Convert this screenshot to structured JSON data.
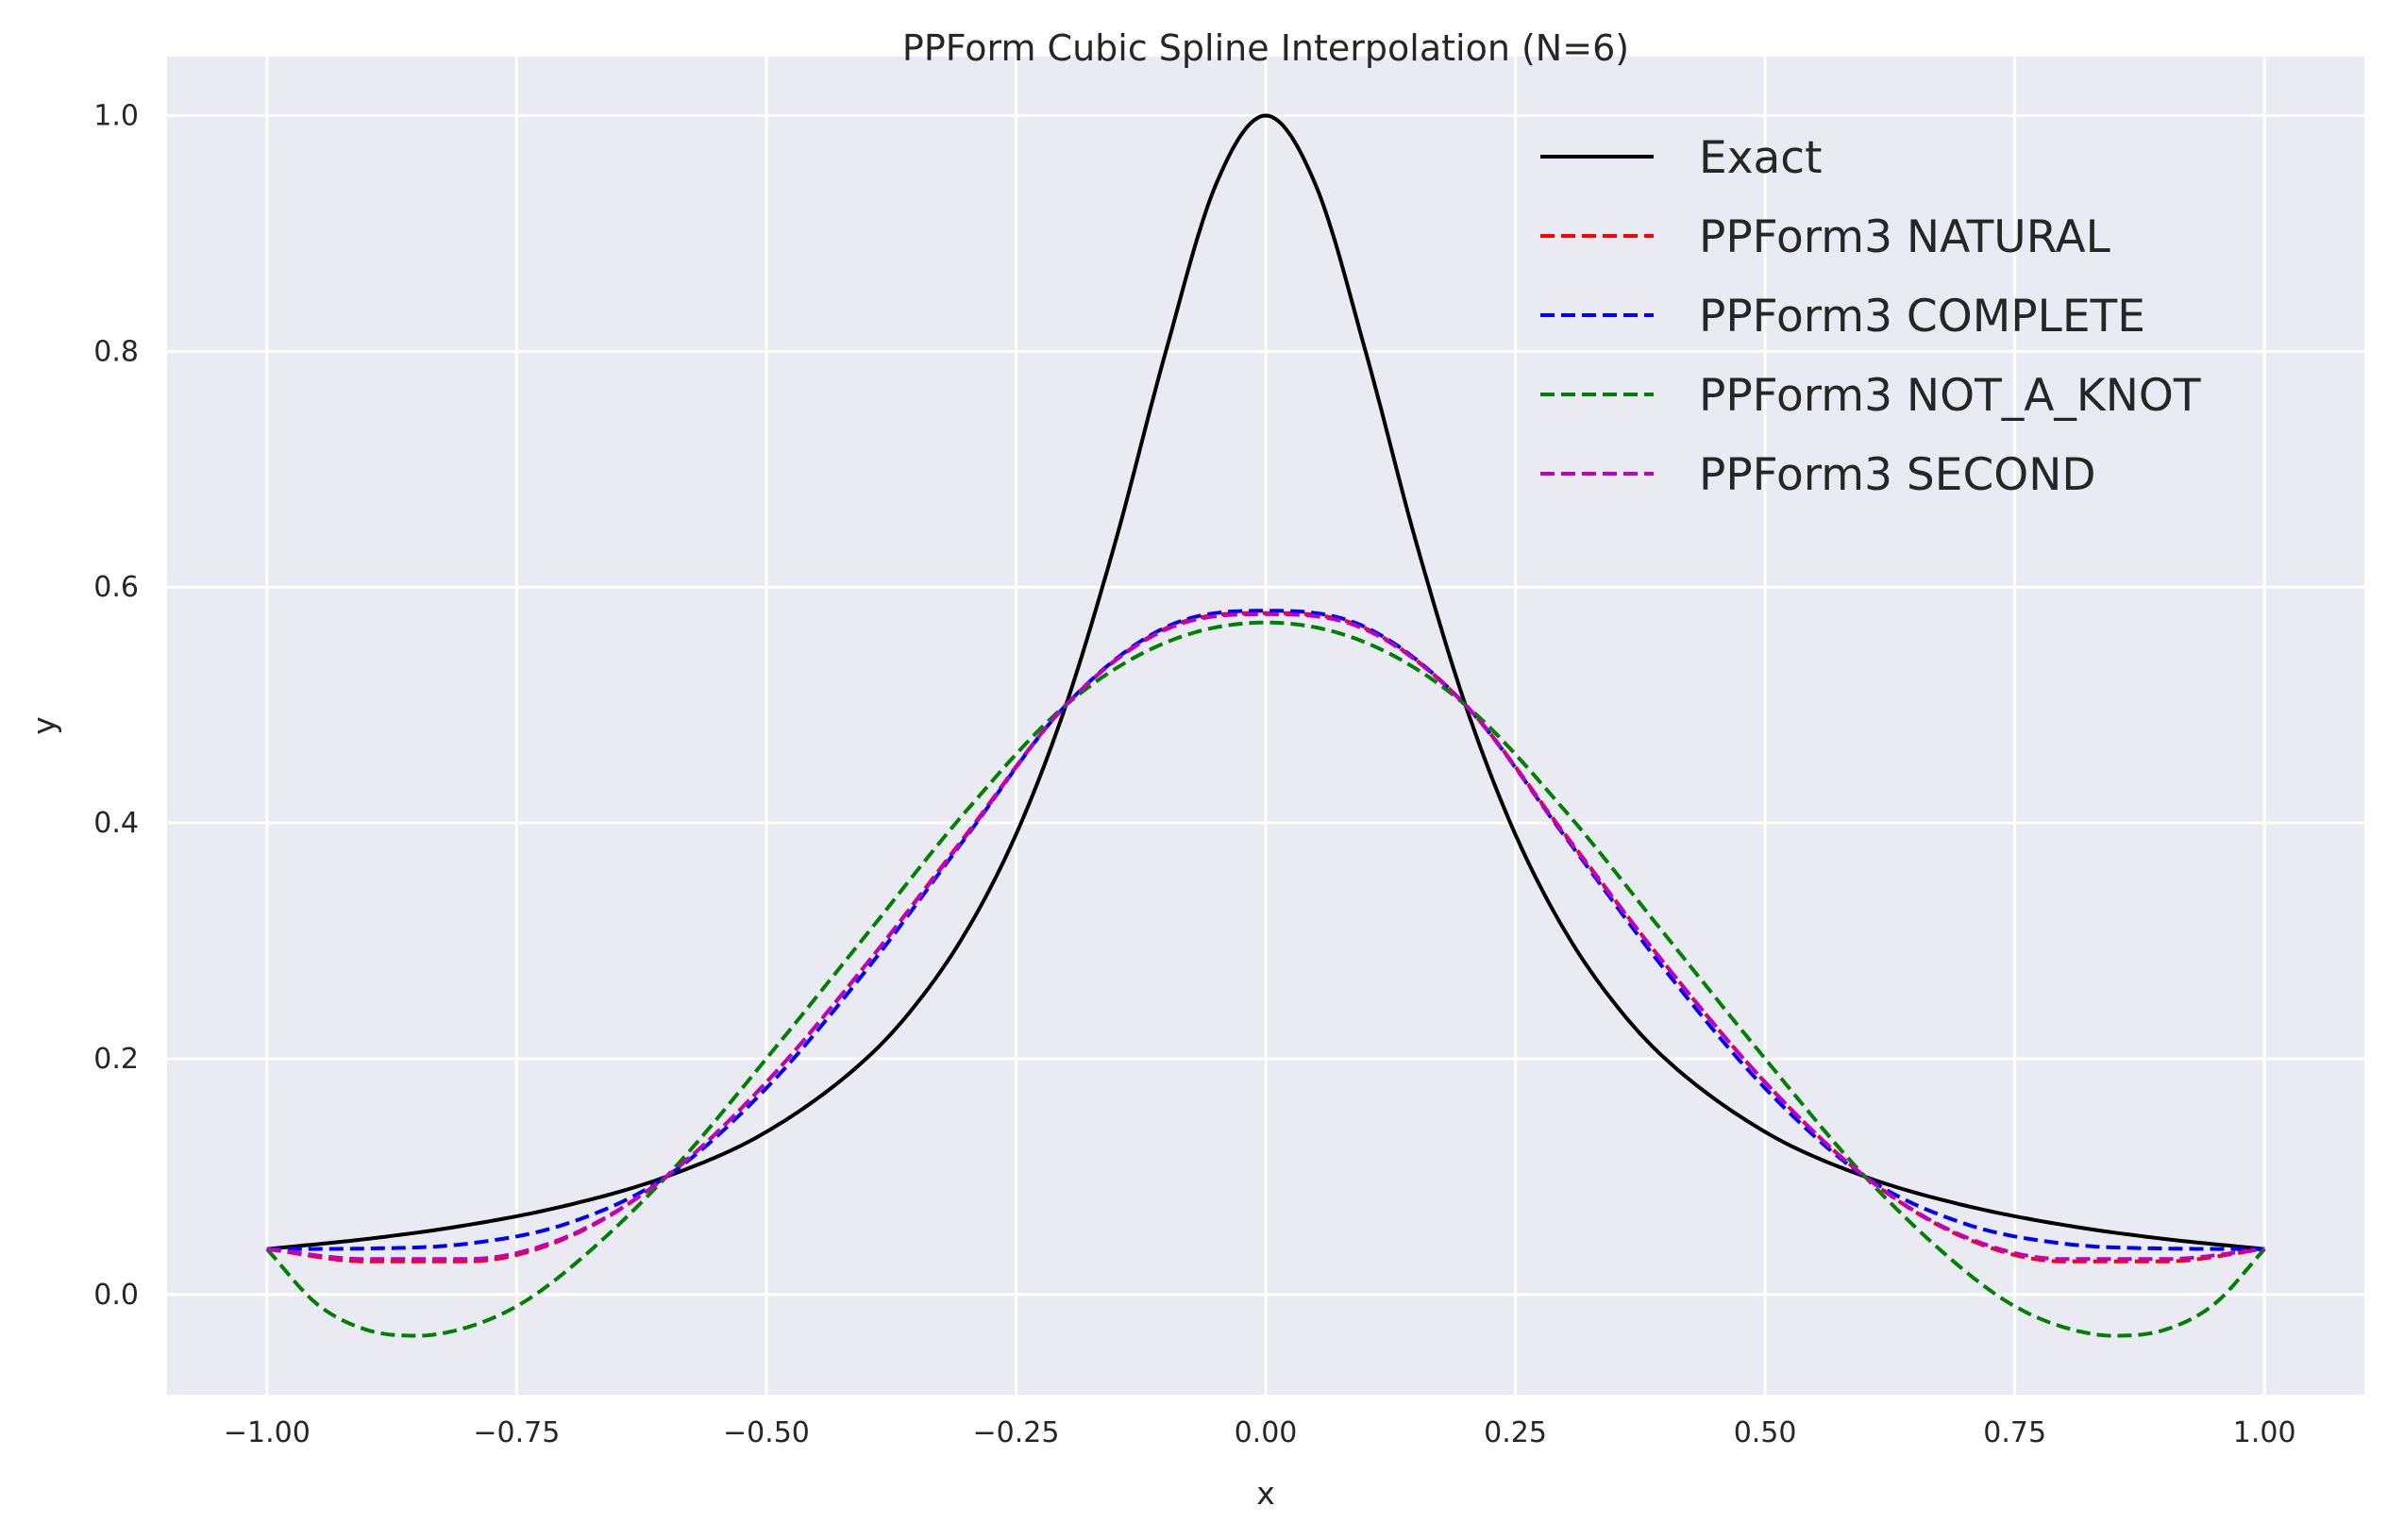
{
  "chart_data": {
    "type": "line",
    "title": "PPForm Cubic Spline Interpolation (N=6)",
    "xlabel": "x",
    "ylabel": "y",
    "xlim": [
      -1.1,
      1.1
    ],
    "ylim": [
      -0.085,
      1.05
    ],
    "xticks": [
      -1.0,
      -0.75,
      -0.5,
      -0.25,
      0.0,
      0.25,
      0.5,
      0.75,
      1.0
    ],
    "xtick_labels": [
      "−1.00",
      "−0.75",
      "−0.50",
      "−0.25",
      "0.00",
      "0.25",
      "0.50",
      "0.75",
      "1.00"
    ],
    "yticks": [
      0.0,
      0.2,
      0.4,
      0.6,
      0.8,
      1.0
    ],
    "ytick_labels": [
      "0.0",
      "0.2",
      "0.4",
      "0.6",
      "0.8",
      "1.0"
    ],
    "grid": true,
    "legend_position": "top-right",
    "background_color": "#eaeaf2",
    "knots_x": [
      -1.0,
      -0.6,
      -0.2,
      0.2,
      0.6,
      1.0
    ],
    "knots_y": [
      0.0385,
      0.1,
      0.5,
      0.5,
      0.1,
      0.0385
    ],
    "series": [
      {
        "name": "Exact",
        "color": "#000000",
        "style": "solid",
        "x": [
          -1.0,
          -0.9,
          -0.8,
          -0.7,
          -0.6,
          -0.5,
          -0.4,
          -0.35,
          -0.3,
          -0.25,
          -0.2,
          -0.15,
          -0.1,
          -0.05,
          0.0,
          0.05,
          0.1,
          0.15,
          0.2,
          0.25,
          0.3,
          0.35,
          0.4,
          0.5,
          0.6,
          0.7,
          0.8,
          0.9,
          1.0
        ],
        "y": [
          0.0385,
          0.0471,
          0.0588,
          0.0755,
          0.1,
          0.1379,
          0.2,
          0.2462,
          0.3077,
          0.3902,
          0.5,
          0.64,
          0.8,
          0.9412,
          1.0,
          0.9412,
          0.8,
          0.64,
          0.5,
          0.3902,
          0.3077,
          0.2462,
          0.2,
          0.1379,
          0.1,
          0.0755,
          0.0588,
          0.0471,
          0.0385
        ]
      },
      {
        "name": "PPForm3 NATURAL",
        "color": "#ff0000",
        "style": "dashed",
        "x": [
          -1.0,
          -0.9,
          -0.8,
          -0.7,
          -0.6,
          -0.5,
          -0.4,
          -0.3,
          -0.2,
          -0.1,
          0.0,
          0.1,
          0.2,
          0.3,
          0.4,
          0.5,
          0.6,
          0.7,
          0.8,
          0.9,
          1.0
        ],
        "y": [
          0.0385,
          0.028,
          0.028,
          0.048,
          0.1,
          0.18,
          0.28,
          0.39,
          0.5,
          0.565,
          0.578,
          0.565,
          0.5,
          0.39,
          0.28,
          0.18,
          0.1,
          0.048,
          0.028,
          0.028,
          0.0385
        ]
      },
      {
        "name": "PPForm3 COMPLETE",
        "color": "#0000ff",
        "style": "dashed",
        "x": [
          -1.0,
          -0.9,
          -0.8,
          -0.7,
          -0.6,
          -0.5,
          -0.4,
          -0.3,
          -0.2,
          -0.1,
          0.0,
          0.1,
          0.2,
          0.3,
          0.4,
          0.5,
          0.6,
          0.7,
          0.8,
          0.9,
          1.0
        ],
        "y": [
          0.0385,
          0.039,
          0.043,
          0.06,
          0.1,
          0.175,
          0.275,
          0.388,
          0.5,
          0.566,
          0.58,
          0.566,
          0.5,
          0.388,
          0.275,
          0.175,
          0.1,
          0.06,
          0.043,
          0.039,
          0.0385
        ]
      },
      {
        "name": "PPForm3 NOT_A_KNOT",
        "color": "#008000",
        "style": "dashed",
        "x": [
          -1.0,
          -0.95,
          -0.9,
          -0.85,
          -0.8,
          -0.75,
          -0.7,
          -0.6,
          -0.5,
          -0.4,
          -0.3,
          -0.2,
          -0.1,
          0.0,
          0.1,
          0.2,
          0.3,
          0.4,
          0.5,
          0.6,
          0.7,
          0.75,
          0.8,
          0.85,
          0.9,
          0.95,
          1.0
        ],
        "y": [
          0.0385,
          -0.008,
          -0.03,
          -0.035,
          -0.028,
          -0.01,
          0.02,
          0.1,
          0.2,
          0.305,
          0.41,
          0.5,
          0.553,
          0.57,
          0.553,
          0.5,
          0.41,
          0.305,
          0.2,
          0.1,
          0.02,
          -0.01,
          -0.028,
          -0.035,
          -0.03,
          -0.008,
          0.0385
        ]
      },
      {
        "name": "PPForm3 SECOND",
        "color": "#bf00bf",
        "style": "dashed",
        "x": [
          -1.0,
          -0.9,
          -0.8,
          -0.7,
          -0.6,
          -0.5,
          -0.4,
          -0.3,
          -0.2,
          -0.1,
          0.0,
          0.1,
          0.2,
          0.3,
          0.4,
          0.5,
          0.6,
          0.7,
          0.8,
          0.9,
          1.0
        ],
        "y": [
          0.0385,
          0.03,
          0.03,
          0.049,
          0.1,
          0.18,
          0.28,
          0.389,
          0.5,
          0.564,
          0.577,
          0.564,
          0.5,
          0.389,
          0.28,
          0.18,
          0.1,
          0.049,
          0.03,
          0.03,
          0.0385
        ]
      }
    ]
  }
}
